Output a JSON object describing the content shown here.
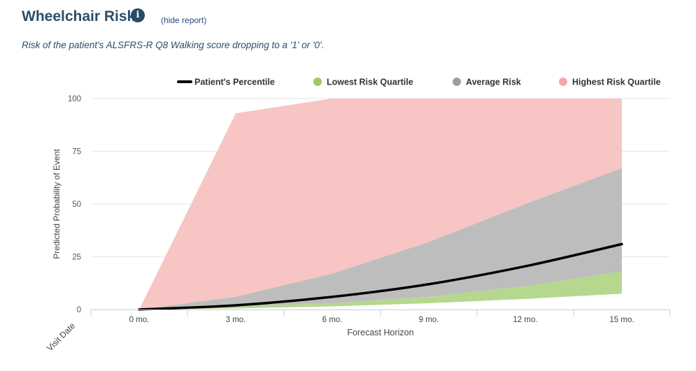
{
  "header": {
    "title": "Wheelchair Risk",
    "info_icon": "info-icon",
    "hide_link": "(hide report)",
    "subtitle": "Risk of the patient's ALSFRS-R Q8 Walking score dropping to a '1' or '0'."
  },
  "colors": {
    "patient": "#000000",
    "lowest": "#b5d88e",
    "average": "#bdbdbd",
    "highest": "#f7c5c4",
    "lowest_legend": "#9ccc65",
    "average_legend": "#9e9e9e",
    "highest_legend": "#f4a9a8"
  },
  "chart_data": {
    "type": "area",
    "categories": [
      "0 mo.",
      "3 mo.",
      "6 mo.",
      "9 mo.",
      "12 mo.",
      "15 mo."
    ],
    "xlabel": "Forecast Horizon",
    "ylabel": "Predicted Probability of Event",
    "corner_label": "Visit Date",
    "ylim": [
      0,
      100
    ],
    "yticks": [
      0,
      25,
      50,
      75,
      100
    ],
    "grid": true,
    "legend_position": "top-right",
    "series": [
      {
        "name": "Highest Risk Quartile",
        "kind": "band",
        "lower": [
          0,
          6,
          17,
          32,
          50,
          67
        ],
        "upper": [
          0,
          93,
          100,
          100,
          100,
          100
        ]
      },
      {
        "name": "Average Risk",
        "kind": "band",
        "lower": [
          0,
          1.5,
          3,
          6,
          11,
          18
        ],
        "upper": [
          0,
          6,
          17,
          32,
          50,
          67
        ]
      },
      {
        "name": "Lowest Risk Quartile",
        "kind": "band",
        "lower": [
          0,
          0.5,
          1.5,
          3,
          5,
          7.5
        ],
        "upper": [
          0,
          1.5,
          3,
          6,
          11,
          18
        ]
      },
      {
        "name": "Patient's Percentile",
        "kind": "line",
        "values": [
          0,
          2,
          6,
          12,
          20.5,
          31
        ]
      }
    ],
    "legend": [
      "Patient's Percentile",
      "Lowest Risk Quartile",
      "Average Risk",
      "Highest Risk Quartile"
    ]
  }
}
